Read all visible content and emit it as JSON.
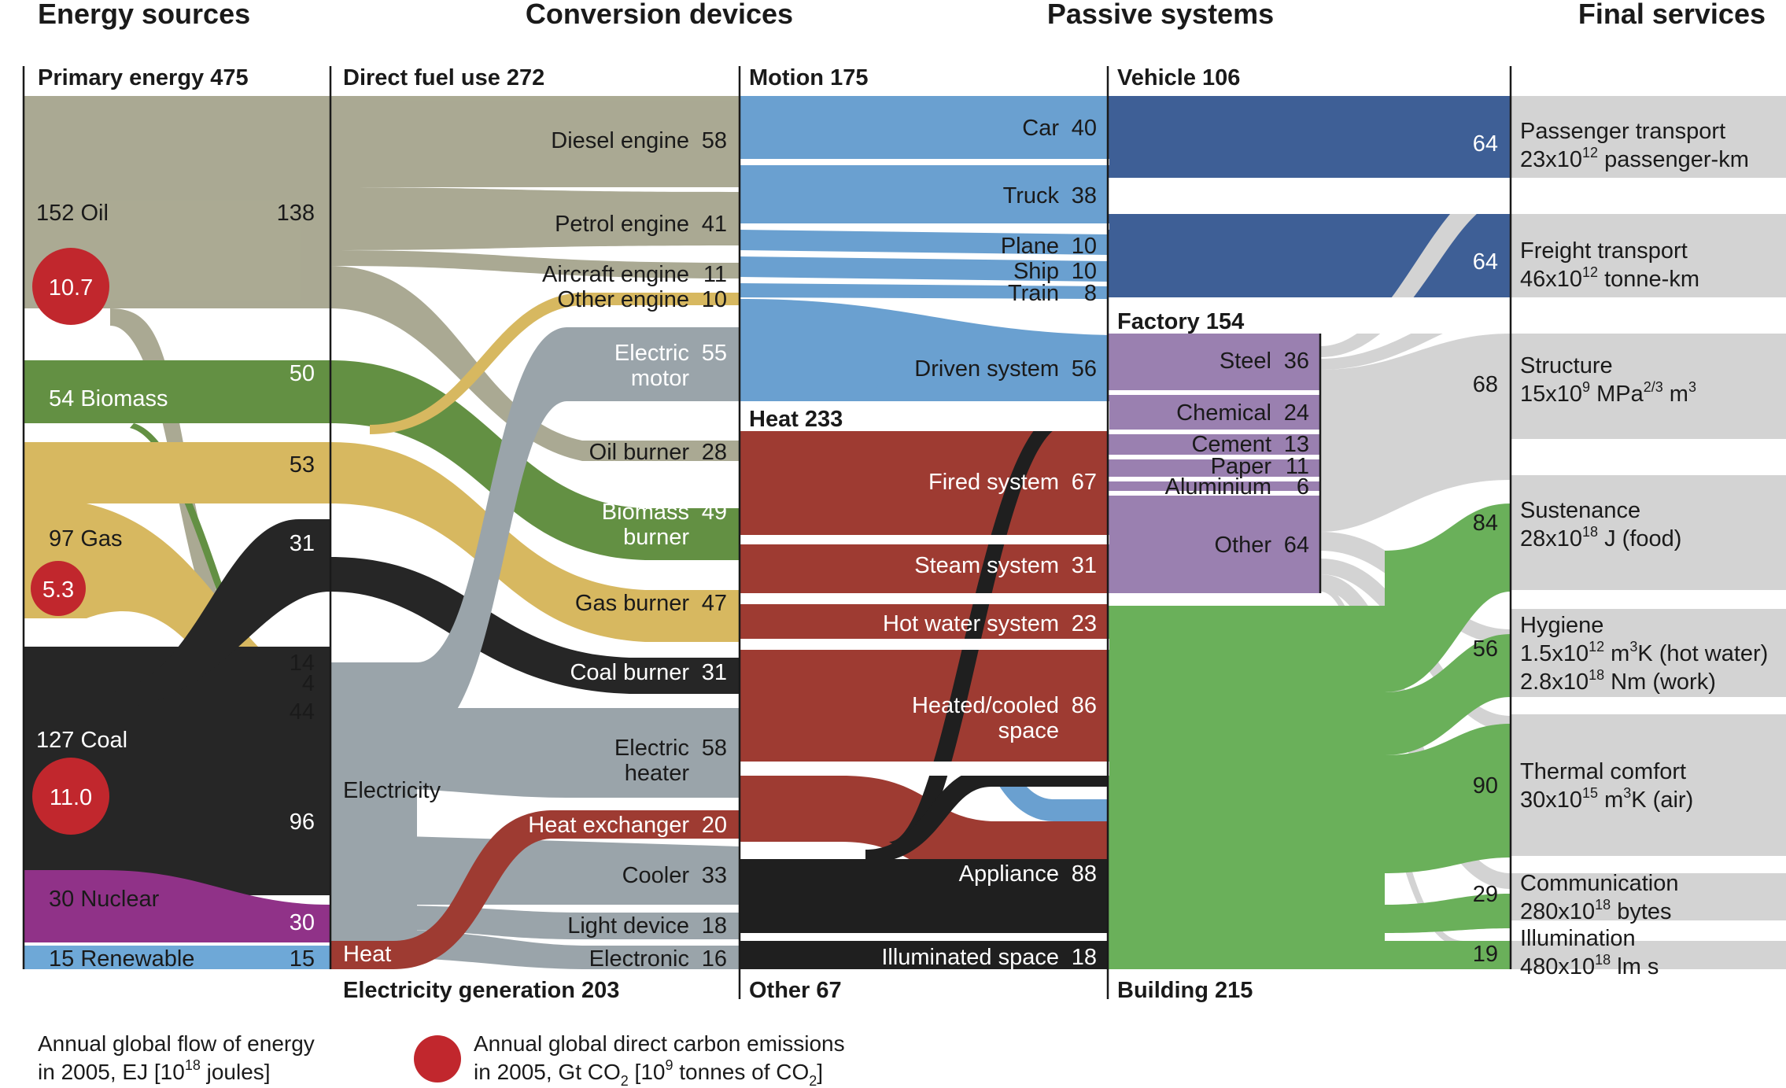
{
  "headers": {
    "energy_sources": "Energy sources",
    "conversion_devices": "Conversion devices",
    "passive_systems": "Passive systems",
    "final_services": "Final services"
  },
  "columns": {
    "primary_energy": "Primary energy  475",
    "direct_fuel_use": "Direct fuel use  272",
    "electricity_generation": "Electricity generation  203",
    "motion": "Motion 175",
    "heat": "Heat  233",
    "other": "Other  67",
    "vehicle": "Vehicle  106",
    "factory": "Factory  154",
    "building": "Building  215"
  },
  "sources": [
    {
      "name": "Oil",
      "label": "152  Oil",
      "out": "138",
      "color": "#a8a790"
    },
    {
      "name": "Biomass",
      "label": "54  Biomass",
      "out": "50",
      "color": "#5e8d3d"
    },
    {
      "name": "Gas",
      "label": "97  Gas",
      "out": "53",
      "color": "#d6b65b"
    },
    {
      "name": "Coal",
      "label": "127  Coal",
      "out": "31",
      "color": "#1f1f1f"
    },
    {
      "name": "Nuclear",
      "label": "30  Nuclear",
      "out": "30",
      "color": "#8d2c85"
    },
    {
      "name": "Renewable",
      "label": "15  Renewable",
      "out": "15",
      "color": "#6aa6d6"
    }
  ],
  "source_to_electricity": [
    "14",
    "4",
    "44",
    "96",
    "30",
    "15"
  ],
  "emissions": [
    {
      "source": "Oil",
      "value": "10.7"
    },
    {
      "source": "Gas",
      "value": "5.3"
    },
    {
      "source": "Coal",
      "value": "11.0"
    }
  ],
  "electricity_labels": {
    "electricity": "Electricity",
    "heat": "Heat"
  },
  "devices": [
    {
      "label": "Diesel engine",
      "value": "58"
    },
    {
      "label": "Petrol engine",
      "value": "41"
    },
    {
      "label": "Aircraft engine",
      "value": "11"
    },
    {
      "label": "Other engine",
      "value": "10"
    },
    {
      "label": "Electric",
      "label2": "motor",
      "value": "55"
    },
    {
      "label": "Oil burner",
      "value": "28"
    },
    {
      "label": "Biomass",
      "label2": "burner",
      "value": "49"
    },
    {
      "label": "Gas burner",
      "value": "47"
    },
    {
      "label": "Coal burner",
      "value": "31"
    },
    {
      "label": "Electric",
      "label2": "heater",
      "value": "58"
    },
    {
      "label": "Heat exchanger",
      "value": "20"
    },
    {
      "label": "Cooler",
      "value": "33"
    },
    {
      "label": "Light device",
      "value": "18"
    },
    {
      "label": "Electronic",
      "value": "16"
    }
  ],
  "passive": [
    {
      "label": "Car",
      "value": "40"
    },
    {
      "label": "Truck",
      "value": "38"
    },
    {
      "label": "Plane",
      "value": "10"
    },
    {
      "label": "Ship",
      "value": "10"
    },
    {
      "label": "Train",
      "value": "8"
    },
    {
      "label": "Driven system",
      "value": "56"
    },
    {
      "label": "Fired system",
      "value": "67"
    },
    {
      "label": "Steam system",
      "value": "31"
    },
    {
      "label": "Hot water system",
      "value": "23"
    },
    {
      "label": "Heated/cooled",
      "label2": "space",
      "value": "86"
    },
    {
      "label": "Appliance",
      "value": "88"
    },
    {
      "label": "Illuminated space",
      "value": "18"
    }
  ],
  "factory_items": [
    {
      "label": "Steel",
      "value": "36"
    },
    {
      "label": "Chemical",
      "value": "24"
    },
    {
      "label": "Cement",
      "value": "13"
    },
    {
      "label": "Paper",
      "value": "11"
    },
    {
      "label": "Aluminium",
      "value": "6"
    },
    {
      "label": "Other",
      "value": "64"
    }
  ],
  "service_values": [
    "64",
    "64",
    "68",
    "84",
    "56",
    "90",
    "29",
    "19"
  ],
  "services": [
    {
      "l1": "Passenger transport",
      "l2": "23x10",
      "l2sup": "12",
      "l2b": " passenger-km"
    },
    {
      "l1": "Freight transport",
      "l2": "46x10",
      "l2sup": "12",
      "l2b": " tonne-km"
    },
    {
      "l1": "Structure",
      "l2": "15x10",
      "l2sup": "9",
      "l2b": "  MPa",
      "l2sup2": "2/3",
      "l2c": " m",
      "l2sup3": "3"
    },
    {
      "l1": "Sustenance",
      "l2": "28x10",
      "l2sup": "18",
      "l2b": " J (food)"
    },
    {
      "l1": "Hygiene",
      "l2": "1.5x10",
      "l2sup": "12",
      "l2b": " m",
      "l2sup2": "3",
      "l2c": "K (hot water)",
      "l3": "2.8x10",
      "l3sup": "18",
      "l3b": " Nm (work)"
    },
    {
      "l1": "Thermal comfort",
      "l2": "30x10",
      "l2sup": "15",
      "l2b": " m",
      "l2sup2": "3",
      "l2c": "K (air)"
    },
    {
      "l1": "Communication",
      "l2": "280x10",
      "l2sup": "18",
      "l2b": " bytes"
    },
    {
      "l1": "Illumination",
      "l2": "480x10",
      "l2sup": "18",
      "l2b": " lm s"
    }
  ],
  "notes": {
    "flow_line1": "Annual global flow of energy",
    "flow_line2": "in 2005, EJ  [10",
    "flow_sup": "18",
    "flow_end": " joules]",
    "carbon_line1": "Annual global direct carbon emissions",
    "carbon_line2": "in 2005, Gt CO",
    "carbon_sub": "2",
    "carbon_mid": "  [10",
    "carbon_sup": "9",
    "carbon_mid2": " tonnes of CO",
    "carbon_sub2": "2",
    "carbon_end": "]"
  },
  "colors": {
    "oil": "#a8a790",
    "biomass": "#5e8d3d",
    "gas": "#d6b65b",
    "coal": "#1f1f1f",
    "nuclear": "#8d2c85",
    "renewable": "#6aa6d6",
    "electricity": "#9aa4aa",
    "motion": "#6aa0d0",
    "vehicle": "#3e5f96",
    "heat": "#9e3b32",
    "factory": "#9a80b0",
    "building": "#6ab05a",
    "service": "#d3d3d3",
    "emission": "#c1272d"
  }
}
